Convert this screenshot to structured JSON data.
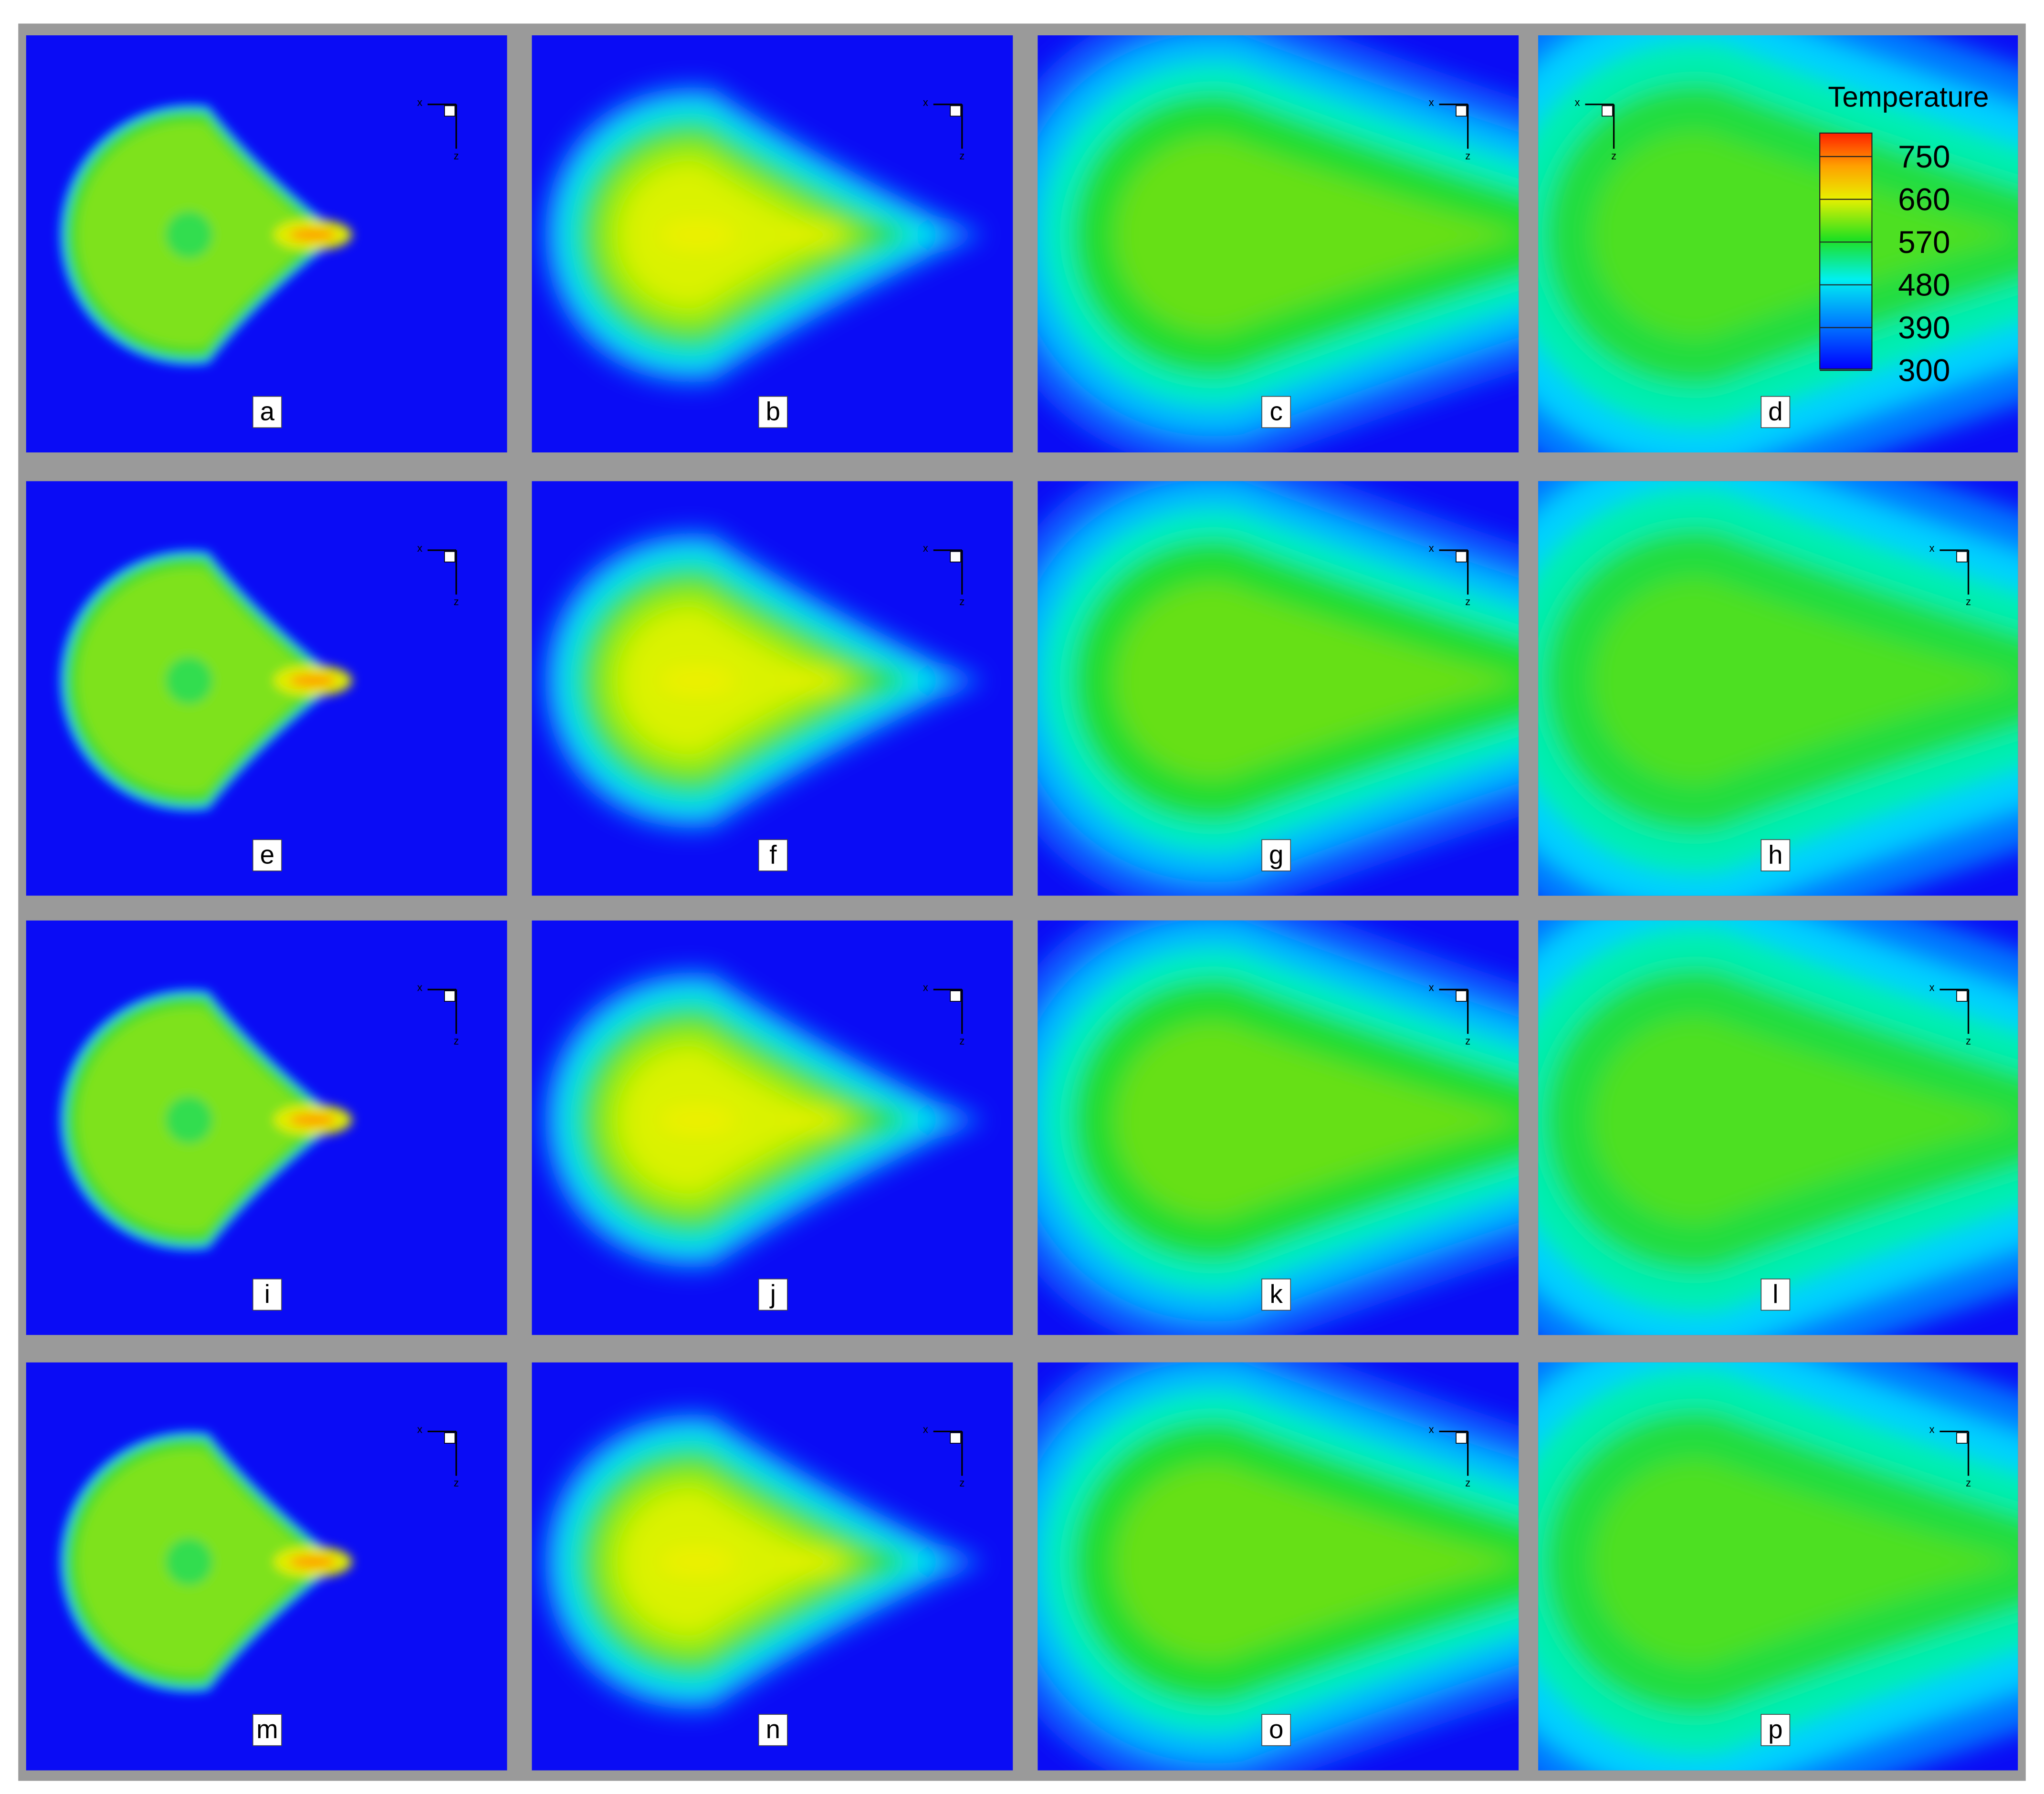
{
  "panels": [
    {
      "label": "a"
    },
    {
      "label": "b"
    },
    {
      "label": "c"
    },
    {
      "label": "d"
    },
    {
      "label": "e"
    },
    {
      "label": "f"
    },
    {
      "label": "g"
    },
    {
      "label": "h"
    },
    {
      "label": "i"
    },
    {
      "label": "j"
    },
    {
      "label": "k"
    },
    {
      "label": "l"
    },
    {
      "label": "m"
    },
    {
      "label": "n"
    },
    {
      "label": "o"
    },
    {
      "label": "p"
    }
  ],
  "axis_labels": {
    "x": "x",
    "z": "z"
  },
  "legend": {
    "title": "Temperature",
    "ticks": [
      750,
      660,
      570,
      480,
      390,
      300
    ]
  }
}
